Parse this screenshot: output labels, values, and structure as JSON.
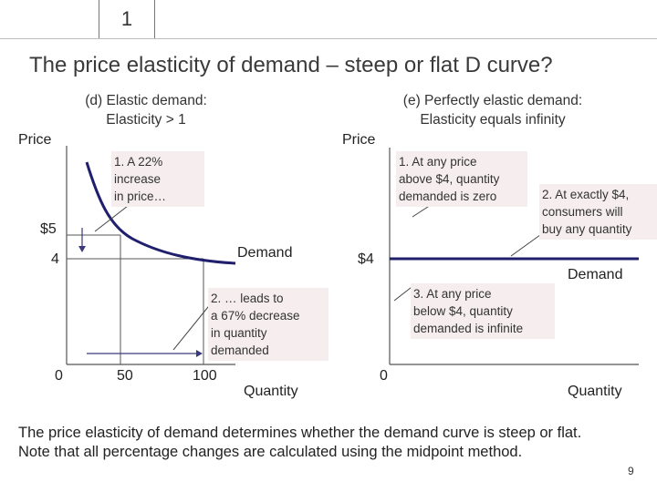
{
  "slide_number": "1",
  "title": "The price elasticity of demand – steep or flat D curve?",
  "left_panel": {
    "subtitle_line1": "(d) Elastic demand:",
    "subtitle_line2": "Elasticity > 1",
    "y_axis_label": "Price",
    "x_axis_label": "Quantity",
    "price_high_label": "$5",
    "price_low_label": "4",
    "x_ticks": [
      "0",
      "50",
      "100"
    ],
    "curve_label": "Demand",
    "note1": [
      "1.  A 22%",
      "increase",
      "in price…"
    ],
    "note2": [
      "2. … leads to",
      "a 67% decrease",
      "in quantity",
      "demanded"
    ]
  },
  "right_panel": {
    "subtitle_line1": "(e) Perfectly elastic demand:",
    "subtitle_line2": "Elasticity equals infinity",
    "y_axis_label": "Price",
    "x_axis_label": "Quantity",
    "price_label": "$4",
    "x_origin": "0",
    "curve_label": "Demand",
    "note1": [
      "1. At any price",
      "above $4, quantity",
      "demanded is zero"
    ],
    "note2": [
      "2. At exactly $4,",
      "consumers will",
      "buy any quantity"
    ],
    "note3": [
      "3. At any price",
      "below $4, quantity",
      "demanded is infinite"
    ]
  },
  "footer_line1": "The price elasticity of demand determines whether the demand curve is steep or flat.",
  "footer_line2": "Note that all percentage changes are calculated using the midpoint method.",
  "page_number": "9",
  "colors": {
    "curve": "#1f1f6e",
    "note_bg": "#f6eeee",
    "title": "#3a3a3a"
  }
}
